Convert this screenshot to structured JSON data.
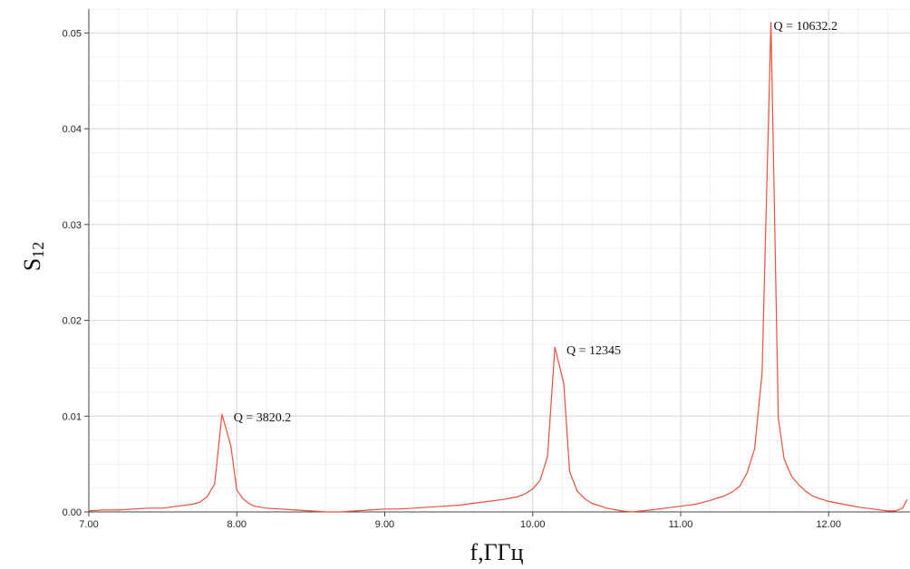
{
  "chart_data": {
    "type": "line",
    "title": "",
    "xlabel": "f,ГГц",
    "ylabel_main": "S",
    "ylabel_sub": "12",
    "xlim": [
      7.0,
      12.55
    ],
    "ylim": [
      0,
      0.0525
    ],
    "x_ticks": [
      7.0,
      8.0,
      9.0,
      10.0,
      11.0,
      12.0
    ],
    "x_tick_labels": [
      "7.00",
      "8.00",
      "9.00",
      "10.00",
      "11.00",
      "12.00"
    ],
    "y_ticks": [
      0.0,
      0.01,
      0.02,
      0.03,
      0.04,
      0.05
    ],
    "y_tick_labels": [
      "0.00",
      "0.01",
      "0.02",
      "0.03",
      "0.04",
      "0.05"
    ],
    "grid": true,
    "line_color": "#e8503a",
    "series": [
      {
        "x": [
          7.0,
          7.1,
          7.2,
          7.3,
          7.4,
          7.5,
          7.6,
          7.7,
          7.75,
          7.8,
          7.85,
          7.9,
          7.96,
          8.0,
          8.04,
          8.08,
          8.12,
          8.2,
          8.3,
          8.4,
          8.5,
          8.6,
          8.7,
          8.8,
          8.9,
          9.0,
          9.1,
          9.2,
          9.3,
          9.4,
          9.5,
          9.6,
          9.7,
          9.8,
          9.9,
          9.95,
          10.0,
          10.05,
          10.1,
          10.15,
          10.21,
          10.25,
          10.3,
          10.35,
          10.4,
          10.5,
          10.6,
          10.67,
          10.8,
          10.9,
          11.0,
          11.1,
          11.2,
          11.3,
          11.35,
          11.4,
          11.45,
          11.5,
          11.55,
          11.61,
          11.66,
          11.7,
          11.75,
          11.8,
          11.85,
          11.9,
          12.0,
          12.1,
          12.2,
          12.3,
          12.4,
          12.45,
          12.5,
          12.53
        ],
        "y": [
          0.0001,
          0.0002,
          0.0002,
          0.0003,
          0.0004,
          0.0004,
          0.0006,
          0.0008,
          0.001,
          0.0016,
          0.0029,
          0.0102,
          0.0069,
          0.0023,
          0.0014,
          0.0009,
          0.0006,
          0.0004,
          0.0003,
          0.0002,
          0.0001,
          0.0,
          0.0,
          0.0001,
          0.0002,
          0.0003,
          0.0003,
          0.0004,
          0.0005,
          0.0006,
          0.0007,
          0.0009,
          0.0011,
          0.0013,
          0.0016,
          0.0019,
          0.0024,
          0.0033,
          0.0058,
          0.0172,
          0.0134,
          0.0042,
          0.0022,
          0.0014,
          0.0009,
          0.0004,
          0.0001,
          0.0,
          0.0002,
          0.0004,
          0.0006,
          0.0008,
          0.0012,
          0.0017,
          0.0021,
          0.0027,
          0.0041,
          0.0066,
          0.0145,
          0.0511,
          0.0098,
          0.0055,
          0.0037,
          0.0028,
          0.0021,
          0.0016,
          0.0011,
          0.0008,
          0.0005,
          0.0003,
          0.0001,
          0.0001,
          0.0004,
          0.0013
        ]
      }
    ],
    "annotations": [
      {
        "x": 7.96,
        "y": 0.0102,
        "text": "Q = 3820.2"
      },
      {
        "x": 10.21,
        "y": 0.0172,
        "text": "Q = 12345"
      },
      {
        "x": 11.61,
        "y": 0.0511,
        "text": "Q = 10632.2"
      }
    ]
  }
}
